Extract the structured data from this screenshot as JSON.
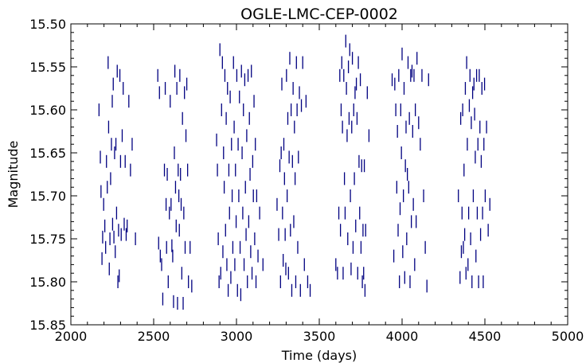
{
  "chart_data": {
    "type": "scatter",
    "title": "OGLE-LMC-CEP-0002",
    "xlabel": "Time (days)",
    "ylabel": "Magnitude",
    "xlim": [
      2000,
      5000
    ],
    "ylim": [
      15.85,
      15.5
    ],
    "y_inverted": true,
    "grid": false,
    "marker": "vertical-bar",
    "marker_color": "#000080",
    "x_ticks": [
      "2000",
      "2500",
      "3000",
      "3500",
      "4000",
      "4500",
      "5000"
    ],
    "y_ticks": [
      "15.50",
      "15.55",
      "15.60",
      "15.65",
      "15.70",
      "15.75",
      "15.80",
      "15.85"
    ],
    "points": [
      [
        2170,
        15.6
      ],
      [
        2178,
        15.655
      ],
      [
        2182,
        15.695
      ],
      [
        2188,
        15.773
      ],
      [
        2192,
        15.748
      ],
      [
        2198,
        15.71
      ],
      [
        2205,
        15.735
      ],
      [
        2210,
        15.76
      ],
      [
        2215,
        15.66
      ],
      [
        2220,
        15.69
      ],
      [
        2225,
        15.545
      ],
      [
        2228,
        15.62
      ],
      [
        2232,
        15.785
      ],
      [
        2236,
        15.75
      ],
      [
        2240,
        15.68
      ],
      [
        2245,
        15.64
      ],
      [
        2250,
        15.59
      ],
      [
        2252,
        15.733
      ],
      [
        2256,
        15.57
      ],
      [
        2260,
        15.748
      ],
      [
        2264,
        15.65
      ],
      [
        2268,
        15.765
      ],
      [
        2272,
        15.64
      ],
      [
        2276,
        15.72
      ],
      [
        2280,
        15.555
      ],
      [
        2284,
        15.8
      ],
      [
        2288,
        15.74
      ],
      [
        2292,
        15.793
      ],
      [
        2296,
        15.56
      ],
      [
        2300,
        15.66
      ],
      [
        2304,
        15.745
      ],
      [
        2310,
        15.63
      ],
      [
        2316,
        15.575
      ],
      [
        2322,
        15.733
      ],
      [
        2328,
        15.66
      ],
      [
        2334,
        15.745
      ],
      [
        2340,
        15.735
      ],
      [
        2350,
        15.59
      ],
      [
        2360,
        15.67
      ],
      [
        2370,
        15.64
      ],
      [
        2390,
        15.75
      ],
      [
        2525,
        15.56
      ],
      [
        2530,
        15.755
      ],
      [
        2535,
        15.58
      ],
      [
        2540,
        15.77
      ],
      [
        2548,
        15.78
      ],
      [
        2555,
        15.82
      ],
      [
        2565,
        15.67
      ],
      [
        2570,
        15.575
      ],
      [
        2575,
        15.71
      ],
      [
        2578,
        15.76
      ],
      [
        2582,
        15.675
      ],
      [
        2588,
        15.8
      ],
      [
        2595,
        15.72
      ],
      [
        2600,
        15.59
      ],
      [
        2605,
        15.71
      ],
      [
        2610,
        15.758
      ],
      [
        2615,
        15.77
      ],
      [
        2620,
        15.823
      ],
      [
        2625,
        15.65
      ],
      [
        2628,
        15.555
      ],
      [
        2632,
        15.69
      ],
      [
        2636,
        15.735
      ],
      [
        2640,
        15.575
      ],
      [
        2644,
        15.825
      ],
      [
        2648,
        15.67
      ],
      [
        2652,
        15.7
      ],
      [
        2655,
        15.74
      ],
      [
        2658,
        15.56
      ],
      [
        2662,
        15.675
      ],
      [
        2666,
        15.71
      ],
      [
        2670,
        15.79
      ],
      [
        2674,
        15.61
      ],
      [
        2678,
        15.825
      ],
      [
        2682,
        15.72
      ],
      [
        2686,
        15.58
      ],
      [
        2690,
        15.76
      ],
      [
        2695,
        15.63
      ],
      [
        2700,
        15.57
      ],
      [
        2705,
        15.67
      ],
      [
        2710,
        15.8
      ],
      [
        2720,
        15.76
      ],
      [
        2730,
        15.805
      ],
      [
        2880,
        15.635
      ],
      [
        2885,
        15.67
      ],
      [
        2890,
        15.75
      ],
      [
        2895,
        15.8
      ],
      [
        2900,
        15.53
      ],
      [
        2905,
        15.79
      ],
      [
        2910,
        15.6
      ],
      [
        2915,
        15.545
      ],
      [
        2918,
        15.765
      ],
      [
        2922,
        15.65
      ],
      [
        2926,
        15.69
      ],
      [
        2930,
        15.56
      ],
      [
        2934,
        15.74
      ],
      [
        2938,
        15.61
      ],
      [
        2942,
        15.78
      ],
      [
        2946,
        15.575
      ],
      [
        2950,
        15.81
      ],
      [
        2954,
        15.67
      ],
      [
        2958,
        15.72
      ],
      [
        2962,
        15.585
      ],
      [
        2966,
        15.795
      ],
      [
        2970,
        15.64
      ],
      [
        2974,
        15.7
      ],
      [
        2978,
        15.76
      ],
      [
        2982,
        15.545
      ],
      [
        2986,
        15.62
      ],
      [
        2990,
        15.78
      ],
      [
        2994,
        15.67
      ],
      [
        2998,
        15.73
      ],
      [
        3002,
        15.56
      ],
      [
        3006,
        15.81
      ],
      [
        3010,
        15.64
      ],
      [
        3014,
        15.7
      ],
      [
        3018,
        15.585
      ],
      [
        3022,
        15.76
      ],
      [
        3026,
        15.815
      ],
      [
        3030,
        15.555
      ],
      [
        3034,
        15.65
      ],
      [
        3038,
        15.72
      ],
      [
        3042,
        15.6
      ],
      [
        3046,
        15.78
      ],
      [
        3050,
        15.565
      ],
      [
        3054,
        15.69
      ],
      [
        3058,
        15.745
      ],
      [
        3062,
        15.63
      ],
      [
        3066,
        15.8
      ],
      [
        3070,
        15.56
      ],
      [
        3074,
        15.73
      ],
      [
        3078,
        15.61
      ],
      [
        3082,
        15.675
      ],
      [
        3086,
        15.765
      ],
      [
        3090,
        15.555
      ],
      [
        3094,
        15.79
      ],
      [
        3098,
        15.66
      ],
      [
        3102,
        15.7
      ],
      [
        3106,
        15.59
      ],
      [
        3110,
        15.75
      ],
      [
        3114,
        15.64
      ],
      [
        3118,
        15.8
      ],
      [
        3122,
        15.7
      ],
      [
        3130,
        15.77
      ],
      [
        3140,
        15.72
      ],
      [
        3160,
        15.78
      ],
      [
        3245,
        15.71
      ],
      [
        3255,
        15.745
      ],
      [
        3262,
        15.665
      ],
      [
        3266,
        15.8
      ],
      [
        3270,
        15.65
      ],
      [
        3274,
        15.57
      ],
      [
        3278,
        15.72
      ],
      [
        3282,
        15.775
      ],
      [
        3286,
        15.64
      ],
      [
        3290,
        15.68
      ],
      [
        3294,
        15.745
      ],
      [
        3298,
        15.785
      ],
      [
        3302,
        15.56
      ],
      [
        3306,
        15.7
      ],
      [
        3310,
        15.61
      ],
      [
        3314,
        15.79
      ],
      [
        3318,
        15.655
      ],
      [
        3322,
        15.54
      ],
      [
        3326,
        15.74
      ],
      [
        3330,
        15.6
      ],
      [
        3334,
        15.81
      ],
      [
        3338,
        15.66
      ],
      [
        3342,
        15.575
      ],
      [
        3346,
        15.73
      ],
      [
        3350,
        15.62
      ],
      [
        3354,
        15.68
      ],
      [
        3358,
        15.8
      ],
      [
        3362,
        15.545
      ],
      [
        3366,
        15.6
      ],
      [
        3370,
        15.76
      ],
      [
        3374,
        15.655
      ],
      [
        3380,
        15.58
      ],
      [
        3386,
        15.81
      ],
      [
        3392,
        15.595
      ],
      [
        3400,
        15.545
      ],
      [
        3410,
        15.78
      ],
      [
        3420,
        15.59
      ],
      [
        3430,
        15.8
      ],
      [
        3445,
        15.81
      ],
      [
        3600,
        15.78
      ],
      [
        3610,
        15.79
      ],
      [
        3618,
        15.72
      ],
      [
        3624,
        15.56
      ],
      [
        3628,
        15.74
      ],
      [
        3632,
        15.6
      ],
      [
        3636,
        15.545
      ],
      [
        3640,
        15.62
      ],
      [
        3644,
        15.79
      ],
      [
        3648,
        15.56
      ],
      [
        3652,
        15.68
      ],
      [
        3656,
        15.72
      ],
      [
        3660,
        15.52
      ],
      [
        3664,
        15.575
      ],
      [
        3668,
        15.63
      ],
      [
        3672,
        15.75
      ],
      [
        3676,
        15.55
      ],
      [
        3680,
        15.61
      ],
      [
        3684,
        15.53
      ],
      [
        3688,
        15.7
      ],
      [
        3692,
        15.785
      ],
      [
        3696,
        15.62
      ],
      [
        3700,
        15.54
      ],
      [
        3704,
        15.76
      ],
      [
        3708,
        15.6
      ],
      [
        3712,
        15.68
      ],
      [
        3716,
        15.58
      ],
      [
        3720,
        15.735
      ],
      [
        3724,
        15.57
      ],
      [
        3728,
        15.61
      ],
      [
        3732,
        15.79
      ],
      [
        3736,
        15.545
      ],
      [
        3740,
        15.66
      ],
      [
        3744,
        15.72
      ],
      [
        3748,
        15.565
      ],
      [
        3752,
        15.76
      ],
      [
        3756,
        15.665
      ],
      [
        3760,
        15.8
      ],
      [
        3764,
        15.74
      ],
      [
        3768,
        15.79
      ],
      [
        3772,
        15.665
      ],
      [
        3776,
        15.81
      ],
      [
        3780,
        15.74
      ],
      [
        3790,
        15.58
      ],
      [
        3800,
        15.63
      ],
      [
        3940,
        15.565
      ],
      [
        3950,
        15.77
      ],
      [
        3956,
        15.57
      ],
      [
        3962,
        15.6
      ],
      [
        3968,
        15.69
      ],
      [
        3972,
        15.625
      ],
      [
        3976,
        15.74
      ],
      [
        3980,
        15.56
      ],
      [
        3984,
        15.8
      ],
      [
        3988,
        15.715
      ],
      [
        3992,
        15.6
      ],
      [
        3996,
        15.65
      ],
      [
        4000,
        15.535
      ],
      [
        4004,
        15.765
      ],
      [
        4008,
        15.7
      ],
      [
        4012,
        15.575
      ],
      [
        4016,
        15.795
      ],
      [
        4020,
        15.665
      ],
      [
        4024,
        15.62
      ],
      [
        4028,
        15.75
      ],
      [
        4032,
        15.675
      ],
      [
        4036,
        15.545
      ],
      [
        4040,
        15.69
      ],
      [
        4044,
        15.61
      ],
      [
        4048,
        15.8
      ],
      [
        4052,
        15.56
      ],
      [
        4056,
        15.73
      ],
      [
        4060,
        15.555
      ],
      [
        4064,
        15.625
      ],
      [
        4068,
        15.71
      ],
      [
        4072,
        15.56
      ],
      [
        4076,
        15.78
      ],
      [
        4080,
        15.6
      ],
      [
        4085,
        15.73
      ],
      [
        4090,
        15.54
      ],
      [
        4100,
        15.615
      ],
      [
        4110,
        15.64
      ],
      [
        4120,
        15.56
      ],
      [
        4130,
        15.7
      ],
      [
        4140,
        15.76
      ],
      [
        4150,
        15.805
      ],
      [
        4160,
        15.565
      ],
      [
        4340,
        15.7
      ],
      [
        4350,
        15.795
      ],
      [
        4354,
        15.61
      ],
      [
        4358,
        15.765
      ],
      [
        4362,
        15.72
      ],
      [
        4366,
        15.6
      ],
      [
        4370,
        15.76
      ],
      [
        4374,
        15.67
      ],
      [
        4378,
        15.745
      ],
      [
        4382,
        15.575
      ],
      [
        4386,
        15.79
      ],
      [
        4390,
        15.545
      ],
      [
        4394,
        15.64
      ],
      [
        4398,
        15.78
      ],
      [
        4402,
        15.72
      ],
      [
        4406,
        15.595
      ],
      [
        4410,
        15.56
      ],
      [
        4414,
        15.75
      ],
      [
        4418,
        15.615
      ],
      [
        4422,
        15.8
      ],
      [
        4426,
        15.58
      ],
      [
        4430,
        15.7
      ],
      [
        4434,
        15.57
      ],
      [
        4438,
        15.605
      ],
      [
        4442,
        15.655
      ],
      [
        4446,
        15.77
      ],
      [
        4450,
        15.56
      ],
      [
        4454,
        15.72
      ],
      [
        4458,
        15.64
      ],
      [
        4462,
        15.8
      ],
      [
        4466,
        15.56
      ],
      [
        4470,
        15.62
      ],
      [
        4474,
        15.745
      ],
      [
        4478,
        15.66
      ],
      [
        4482,
        15.575
      ],
      [
        4486,
        15.72
      ],
      [
        4490,
        15.8
      ],
      [
        4494,
        15.64
      ],
      [
        4498,
        15.57
      ],
      [
        4502,
        15.7
      ],
      [
        4510,
        15.62
      ],
      [
        4520,
        15.74
      ],
      [
        4530,
        15.71
      ]
    ]
  }
}
